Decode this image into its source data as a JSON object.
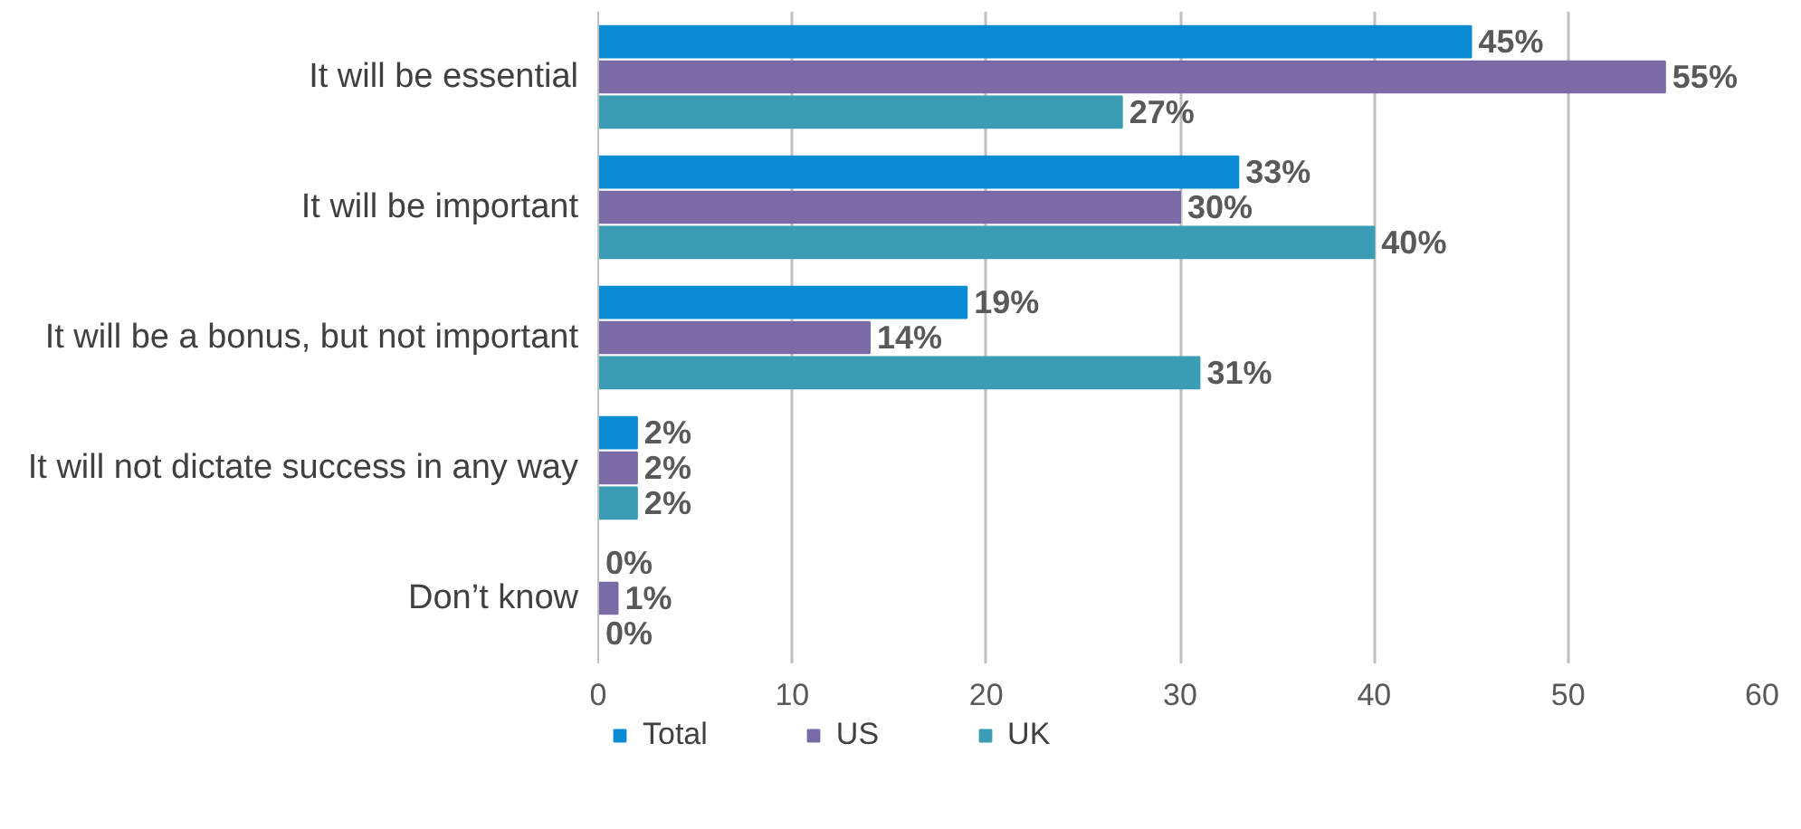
{
  "chart_data": {
    "type": "bar",
    "orientation": "horizontal",
    "categories": [
      "It will be essential",
      "It will be important",
      "It will be a bonus, but not important",
      "It will not dictate success in any way",
      "Don’t know"
    ],
    "series": [
      {
        "name": "Total",
        "color": "#0a8bd3",
        "values": [
          45,
          33,
          19,
          2,
          0
        ],
        "value_labels": [
          "45%",
          "33%",
          "19%",
          "2%",
          "0%"
        ]
      },
      {
        "name": "US",
        "color": "#7a6aa6",
        "values": [
          55,
          30,
          14,
          2,
          1
        ],
        "value_labels": [
          "55%",
          "30%",
          "14%",
          "2%",
          "1%"
        ]
      },
      {
        "name": "UK",
        "color": "#3a9db5",
        "values": [
          27,
          40,
          31,
          2,
          0
        ],
        "value_labels": [
          "27%",
          "40%",
          "31%",
          "2%",
          "0%"
        ]
      }
    ],
    "xlim": [
      0,
      60
    ],
    "xticks": [
      0,
      10,
      20,
      30,
      40,
      50,
      60
    ],
    "grid": "x",
    "legend": "bottom"
  }
}
